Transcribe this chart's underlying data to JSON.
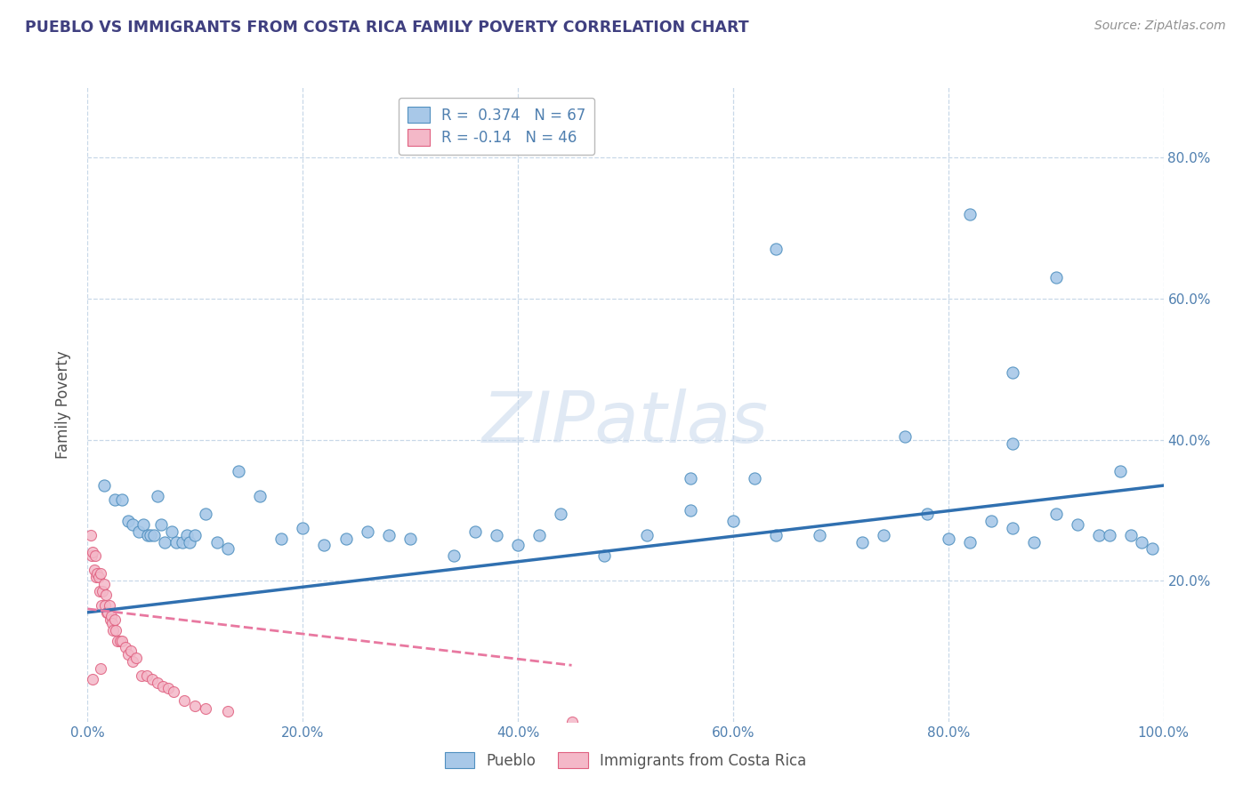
{
  "title": "PUEBLO VS IMMIGRANTS FROM COSTA RICA FAMILY POVERTY CORRELATION CHART",
  "source": "Source: ZipAtlas.com",
  "ylabel": "Family Poverty",
  "watermark": "ZIPatlas",
  "legend_label1": "Pueblo",
  "legend_label2": "Immigrants from Costa Rica",
  "R1": 0.374,
  "N1": 67,
  "R2": -0.14,
  "N2": 46,
  "blue_color": "#a8c8e8",
  "pink_color": "#f4b8c8",
  "blue_edge_color": "#5090c0",
  "pink_edge_color": "#e06080",
  "blue_line_color": "#3070b0",
  "pink_line_color": "#e878a0",
  "background_color": "#ffffff",
  "grid_color": "#c8d8e8",
  "title_color": "#404080",
  "tick_color": "#5080b0",
  "ylabel_color": "#505050",
  "source_color": "#909090",
  "xlim": [
    0.0,
    1.0
  ],
  "ylim": [
    0.0,
    0.9
  ],
  "xticks": [
    0.0,
    0.2,
    0.4,
    0.6,
    0.8,
    1.0
  ],
  "yticks_right": [
    0.2,
    0.4,
    0.6,
    0.8
  ],
  "xticklabels": [
    "0.0%",
    "20.0%",
    "40.0%",
    "60.0%",
    "80.0%",
    "100.0%"
  ],
  "yticklabels_right": [
    "20.0%",
    "40.0%",
    "60.0%",
    "80.0%"
  ],
  "blue_x": [
    0.015,
    0.025,
    0.032,
    0.038,
    0.042,
    0.048,
    0.052,
    0.056,
    0.058,
    0.062,
    0.065,
    0.068,
    0.072,
    0.078,
    0.082,
    0.088,
    0.092,
    0.095,
    0.1,
    0.11,
    0.12,
    0.13,
    0.14,
    0.16,
    0.18,
    0.2,
    0.22,
    0.24,
    0.26,
    0.28,
    0.3,
    0.34,
    0.36,
    0.4,
    0.42,
    0.44,
    0.48,
    0.52,
    0.56,
    0.6,
    0.62,
    0.64,
    0.68,
    0.72,
    0.74,
    0.78,
    0.8,
    0.82,
    0.84,
    0.86,
    0.88,
    0.9,
    0.92,
    0.94,
    0.95,
    0.96,
    0.97,
    0.98,
    0.99,
    0.38,
    0.56,
    0.76,
    0.86,
    0.86,
    0.9,
    0.64,
    0.82
  ],
  "blue_y": [
    0.335,
    0.315,
    0.315,
    0.285,
    0.28,
    0.27,
    0.28,
    0.265,
    0.265,
    0.265,
    0.32,
    0.28,
    0.255,
    0.27,
    0.255,
    0.255,
    0.265,
    0.255,
    0.265,
    0.295,
    0.255,
    0.245,
    0.355,
    0.32,
    0.26,
    0.275,
    0.25,
    0.26,
    0.27,
    0.265,
    0.26,
    0.235,
    0.27,
    0.25,
    0.265,
    0.295,
    0.235,
    0.265,
    0.3,
    0.285,
    0.345,
    0.265,
    0.265,
    0.255,
    0.265,
    0.295,
    0.26,
    0.255,
    0.285,
    0.275,
    0.255,
    0.295,
    0.28,
    0.265,
    0.265,
    0.355,
    0.265,
    0.255,
    0.245,
    0.265,
    0.345,
    0.405,
    0.395,
    0.495,
    0.63,
    0.67,
    0.72
  ],
  "pink_x": [
    0.003,
    0.004,
    0.005,
    0.006,
    0.007,
    0.008,
    0.009,
    0.01,
    0.011,
    0.012,
    0.013,
    0.014,
    0.015,
    0.016,
    0.017,
    0.018,
    0.019,
    0.02,
    0.021,
    0.022,
    0.023,
    0.024,
    0.025,
    0.026,
    0.028,
    0.03,
    0.032,
    0.035,
    0.038,
    0.04,
    0.042,
    0.045,
    0.05,
    0.055,
    0.06,
    0.065,
    0.07,
    0.075,
    0.08,
    0.09,
    0.1,
    0.11,
    0.13,
    0.45,
    0.005,
    0.012
  ],
  "pink_y": [
    0.265,
    0.235,
    0.24,
    0.215,
    0.235,
    0.205,
    0.21,
    0.205,
    0.185,
    0.21,
    0.165,
    0.185,
    0.195,
    0.165,
    0.18,
    0.155,
    0.155,
    0.165,
    0.145,
    0.15,
    0.14,
    0.13,
    0.145,
    0.13,
    0.115,
    0.115,
    0.115,
    0.105,
    0.095,
    0.1,
    0.085,
    0.09,
    0.065,
    0.065,
    0.06,
    0.055,
    0.05,
    0.048,
    0.042,
    0.03,
    0.022,
    0.018,
    0.015,
    0.0,
    0.06,
    0.075
  ]
}
